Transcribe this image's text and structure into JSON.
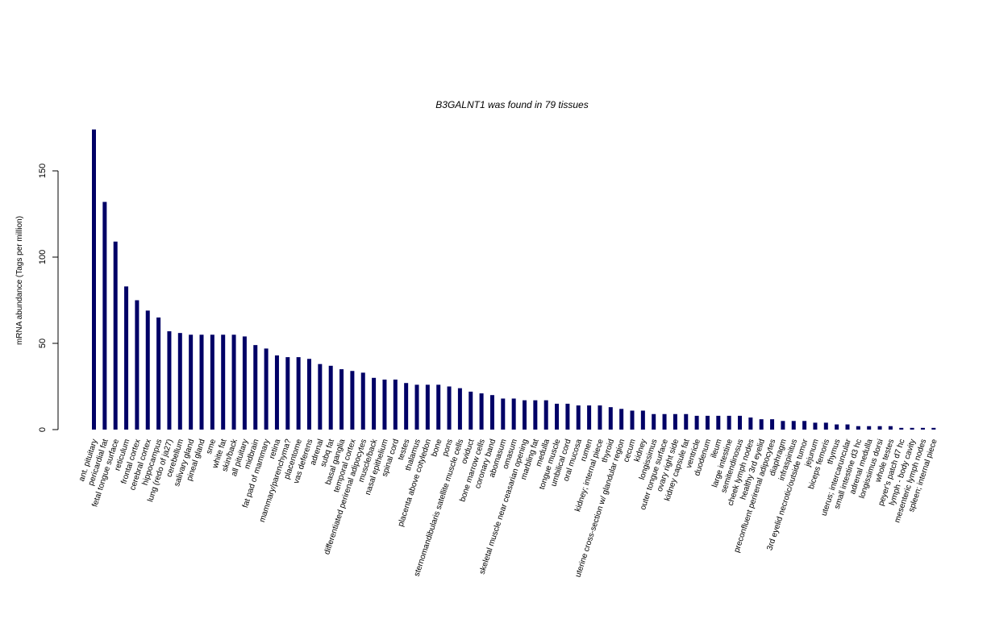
{
  "chart_data": {
    "type": "bar",
    "title": "B3GALNT1  was found in  79  tissues",
    "xlabel": "",
    "ylabel": "mRNA abundance (Tags per million)",
    "ylim": [
      0,
      175
    ],
    "yticks": [
      0,
      50,
      100,
      150
    ],
    "grid": false,
    "bar_color": "#000066",
    "categories": [
      "ant. pituitary",
      "pericardial fat",
      "fetal tongue surface",
      "reticulum",
      "frontal cortex",
      "cerebral cortex",
      "hippocampus",
      "lung (redo of ja27)",
      "cerebellum",
      "salivary gland",
      "pineal gland",
      "sme",
      "white fat",
      "skin/back",
      "all pituitary",
      "midbrain",
      "fat pad of mammary",
      "retina",
      "mammary/parenchyma?",
      "placentome",
      "vas deferens",
      "adrenal",
      "subq fat",
      "basal ganglia",
      "temporal cortex",
      "differentiated perirenal adipocytes",
      "muscle/back",
      "nasal epithelium",
      "spinal cord",
      "testes",
      "thalamus",
      "placenta above cotyledon",
      "bone",
      "pons",
      "sternomandibularis satellite muscle cells",
      "oviduct",
      "bone marrow cells",
      "coronary band",
      "abomasum",
      "omasum",
      "skeletal muscle near ceasarian opening",
      "marbling fat",
      "medulla",
      "tongue muscle",
      "umbilical cord",
      "oral mucosa",
      "rumen",
      "kidney; internal piece",
      "thyroid",
      "uterine cross-section w/ glandular region",
      "cecum",
      "kidney",
      "longissimus",
      "outer tongue surface",
      "ovary right side",
      "kidney capsule fat",
      "ventricle",
      "duodenum",
      "ileum",
      "large intestine",
      "semitendinosus",
      "cheek lymph nodes",
      "healthy 3rd eyelid",
      "preconfluent perirenal adipocytes",
      "diaphragm",
      "infraspinitus",
      "3rd eyelid necrotic/outside tumor",
      "jejunum",
      "biceps femoris",
      "thymus",
      "uterus; intercaruncular",
      "small intestine d3 hc",
      "adrenal medulla",
      "longissimus dorsi",
      "whole testes",
      "peyer's patch d7 hc",
      "lymph - body cavity",
      "mesenteric lymph nodes",
      "spleen; internal piece"
    ],
    "values": [
      174,
      132,
      109,
      83,
      75,
      69,
      65,
      57,
      56,
      55,
      55,
      55,
      55,
      55,
      54,
      49,
      47,
      43,
      42,
      42,
      41,
      38,
      37,
      35,
      34,
      33,
      30,
      29,
      29,
      27,
      26,
      26,
      26,
      25,
      24,
      22,
      21,
      20,
      18,
      18,
      17,
      17,
      17,
      15,
      15,
      14,
      14,
      14,
      13,
      12,
      11,
      11,
      9,
      9,
      9,
      9,
      8,
      8,
      8,
      8,
      8,
      7,
      6,
      6,
      5,
      5,
      5,
      4,
      4,
      3,
      3,
      2,
      2,
      2,
      2,
      1,
      1,
      1,
      1
    ]
  }
}
